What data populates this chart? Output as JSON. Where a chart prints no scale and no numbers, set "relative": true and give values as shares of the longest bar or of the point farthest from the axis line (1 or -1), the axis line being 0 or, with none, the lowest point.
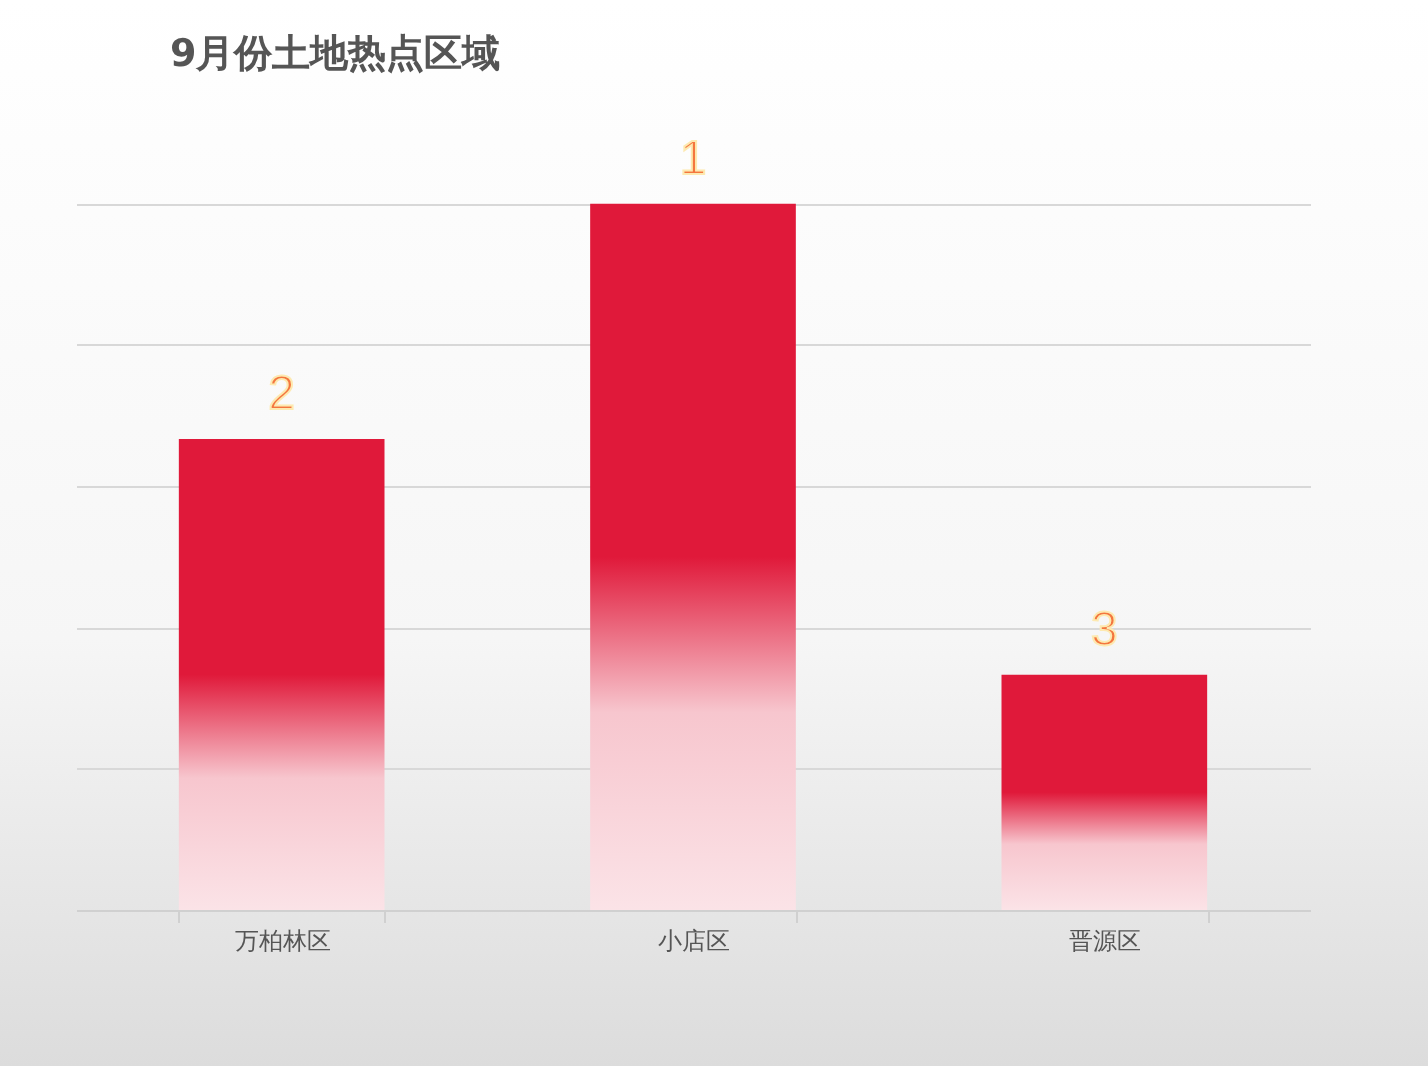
{
  "chart_data": {
    "type": "bar",
    "title": "9月份土地热点区域",
    "categories": [
      "万柏林区",
      "小店区",
      "晋源区"
    ],
    "relative": true,
    "series": [
      {
        "color": "#e0193a",
        "values": [
          0.667,
          1,
          0.333
        ]
      }
    ],
    "annotations": [
      {
        "text": "2",
        "x": "万柏林区",
        "y": 0.667
      },
      {
        "text": "1",
        "x": "小店区",
        "y": 1
      },
      {
        "text": "3",
        "x": "晋源区",
        "y": 0.333
      }
    ],
    "grid": "y"
  }
}
